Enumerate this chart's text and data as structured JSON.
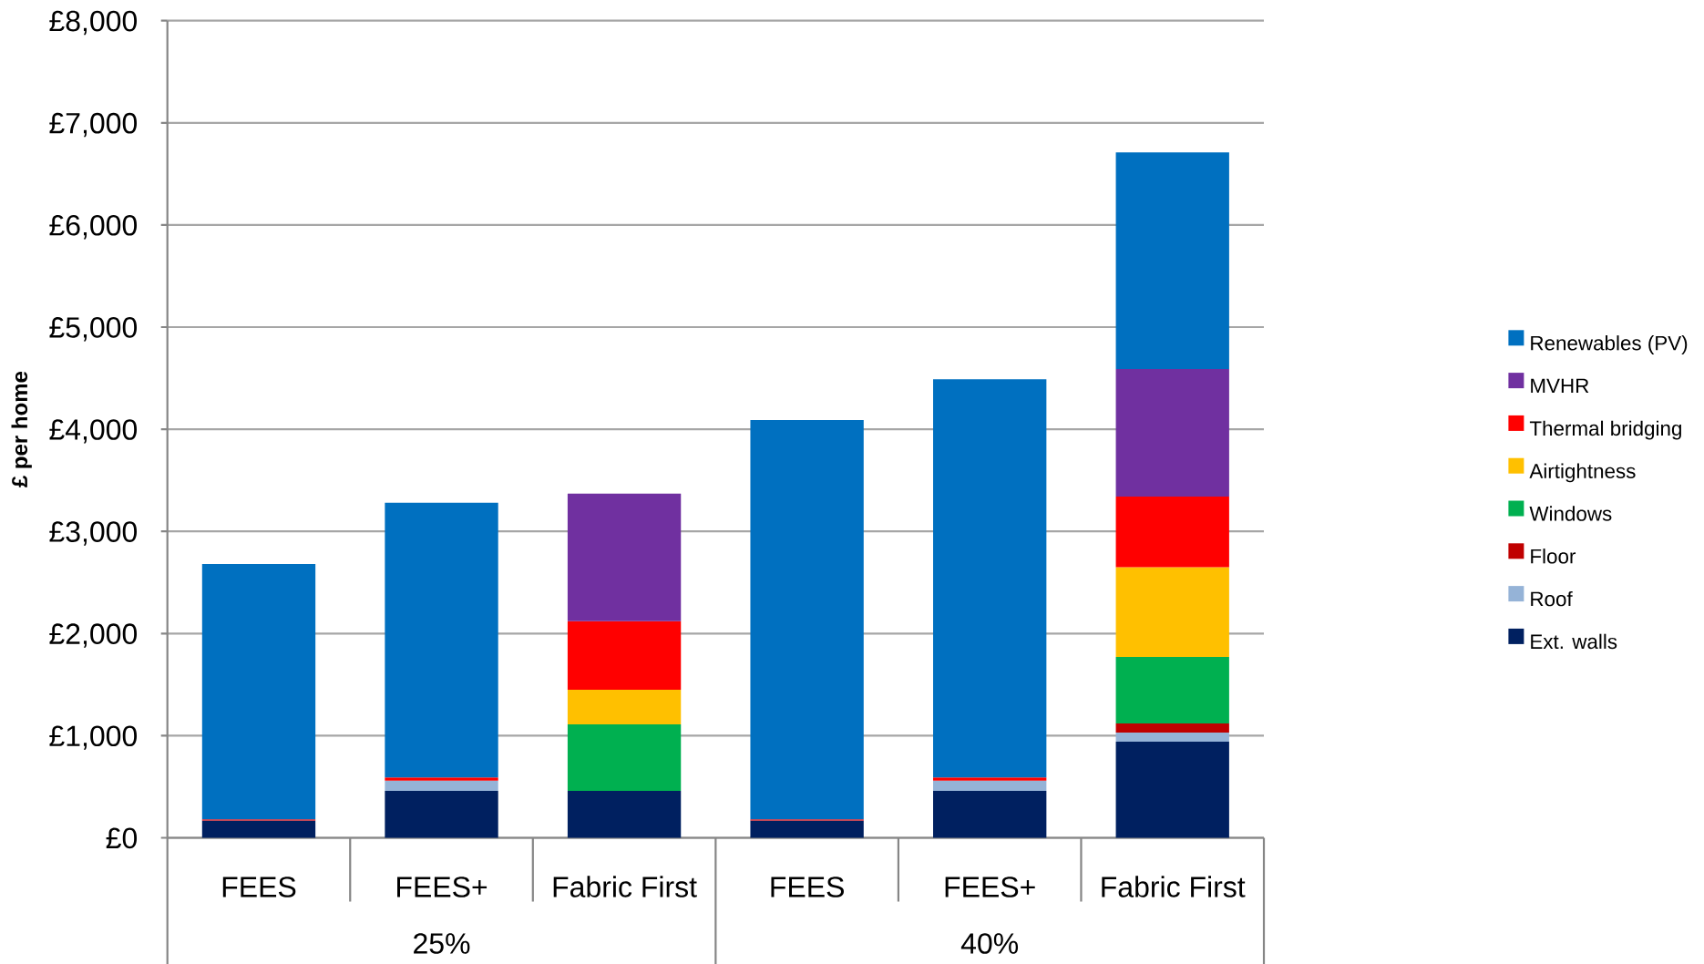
{
  "chart_data": {
    "type": "bar",
    "stacked": true,
    "ylabel": "£ per home",
    "categories": [
      "FEES",
      "FEES+",
      "Fabric First",
      "FEES",
      "FEES+",
      "Fabric First"
    ],
    "annotations": [
      "25%",
      "40%"
    ],
    "ylim": [
      0,
      8000
    ],
    "yticks": [
      {
        "value": 0,
        "label": "£0"
      },
      {
        "value": 1000,
        "label": "£1,000"
      },
      {
        "value": 2000,
        "label": "£2,000"
      },
      {
        "value": 3000,
        "label": "£3,000"
      },
      {
        "value": 4000,
        "label": "£4,000"
      },
      {
        "value": 5000,
        "label": "£5,000"
      },
      {
        "value": 6000,
        "label": "£6,000"
      },
      {
        "value": 7000,
        "label": "£7,000"
      },
      {
        "value": 8000,
        "label": "£8,000"
      }
    ],
    "grid": "y",
    "legend": "right",
    "series": [
      {
        "name": "Ext. walls",
        "color": "#002060",
        "values": [
          170,
          460,
          460,
          170,
          460,
          940
        ]
      },
      {
        "name": "Roof",
        "color": "#95B3D7",
        "values": [
          null,
          100,
          null,
          null,
          100,
          90
        ]
      },
      {
        "name": "Floor",
        "color": "#C00000",
        "values": [
          null,
          null,
          null,
          null,
          null,
          90
        ]
      },
      {
        "name": "Windows",
        "color": "#00B050",
        "values": [
          null,
          null,
          650,
          null,
          null,
          650
        ]
      },
      {
        "name": "Airtightness",
        "color": "#FFC000",
        "values": [
          null,
          null,
          340,
          null,
          null,
          880
        ]
      },
      {
        "name": "Thermal bridging",
        "color": "#FF0000",
        "values": [
          10,
          30,
          670,
          10,
          30,
          690
        ]
      },
      {
        "name": "MVHR",
        "color": "#7030A0",
        "values": [
          null,
          null,
          1250,
          null,
          null,
          1250
        ]
      },
      {
        "name": "Renewables (PV)",
        "color": "#0070C0",
        "values": [
          2500,
          2690,
          null,
          3910,
          3900,
          2120
        ]
      }
    ]
  }
}
